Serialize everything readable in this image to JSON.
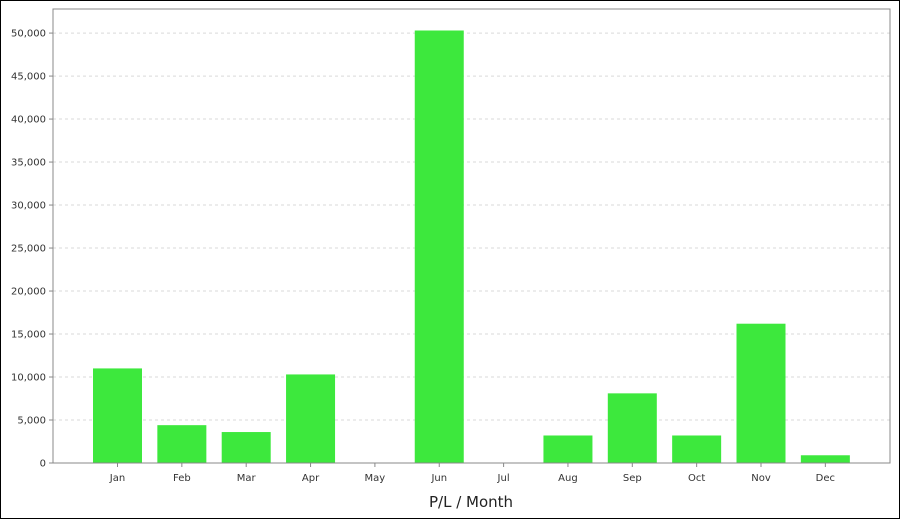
{
  "chart_data": {
    "type": "bar",
    "title": "",
    "xlabel": "P/L / Month",
    "ylabel": "",
    "categories": [
      "Jan",
      "Feb",
      "Mar",
      "Apr",
      "May",
      "Jun",
      "Jul",
      "Aug",
      "Sep",
      "Oct",
      "Nov",
      "Dec"
    ],
    "values": [
      11000,
      4400,
      3600,
      10300,
      0,
      50300,
      0,
      3200,
      8100,
      3200,
      16200,
      900
    ],
    "ylim": [
      0,
      52800
    ],
    "yticks": [
      0,
      5000,
      10000,
      15000,
      20000,
      25000,
      30000,
      35000,
      40000,
      45000,
      50000
    ],
    "ytick_labels": [
      "0",
      "5,000",
      "10,000",
      "15,000",
      "20,000",
      "25,000",
      "30,000",
      "35,000",
      "40,000",
      "45,000",
      "50,000"
    ],
    "grid": true,
    "bar_color": "#3de83d",
    "grid_color": "#d9d9d9",
    "axis_color": "#888888"
  }
}
